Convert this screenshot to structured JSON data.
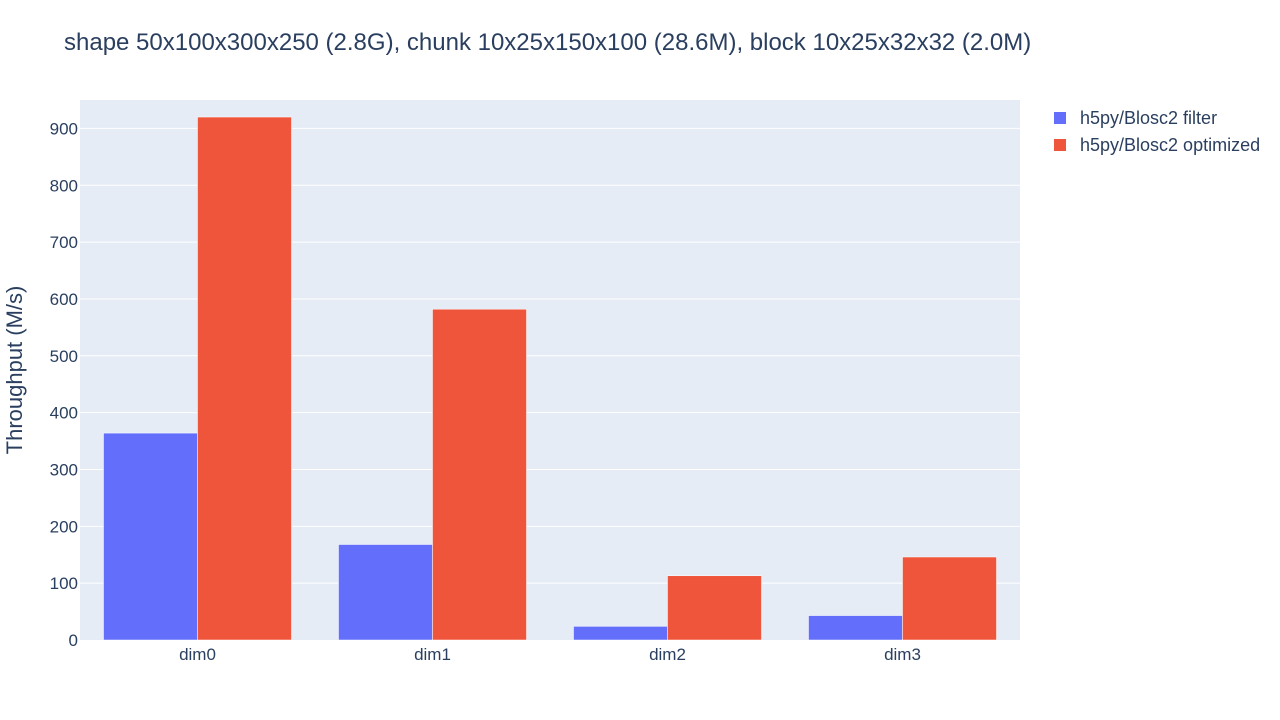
{
  "chart_data": {
    "type": "bar",
    "title": "shape 50x100x300x250 (2.8G), chunk 10x25x150x100 (28.6M), block 10x25x32x32 (2.0M)",
    "xlabel": "",
    "ylabel": "Throughput (M/s)",
    "categories": [
      "dim0",
      "dim1",
      "dim2",
      "dim3"
    ],
    "series": [
      {
        "name": "h5py/Blosc2 filter",
        "color": "#636efa",
        "values": [
          364,
          168,
          24,
          43
        ]
      },
      {
        "name": "h5py/Blosc2 optimized",
        "color": "#ef553b",
        "values": [
          920,
          582,
          113,
          146
        ]
      }
    ],
    "ylim": [
      0,
      950
    ],
    "yticks": [
      0,
      100,
      200,
      300,
      400,
      500,
      600,
      700,
      800,
      900
    ],
    "grid": true,
    "legend": "top-right",
    "plot_bg": "#e5ecf6",
    "paper_bg": "#ffffff"
  }
}
